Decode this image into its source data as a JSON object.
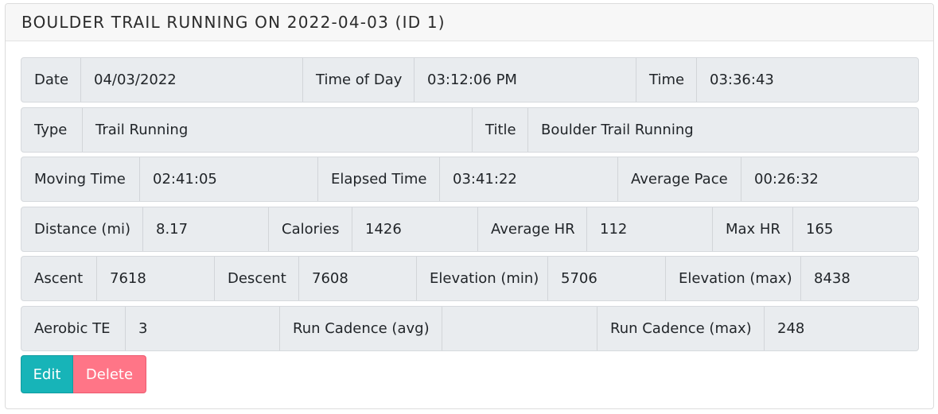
{
  "header": {
    "title": "BOULDER TRAIL RUNNING ON 2022-04-03 (ID 1)"
  },
  "rows": [
    {
      "cells": [
        {
          "label": "Date",
          "value": "04/03/2022"
        },
        {
          "label": "Time of Day",
          "value": "03:12:06 PM"
        },
        {
          "label": "Time",
          "value": "03:36:43"
        }
      ]
    },
    {
      "cells": [
        {
          "label": "Type",
          "value": "Trail Running"
        },
        {
          "label": "Title",
          "value": "Boulder Trail Running"
        }
      ]
    },
    {
      "cells": [
        {
          "label": "Moving Time",
          "value": "02:41:05"
        },
        {
          "label": "Elapsed Time",
          "value": "03:41:22"
        },
        {
          "label": "Average Pace",
          "value": "00:26:32"
        }
      ]
    },
    {
      "cells": [
        {
          "label": "Distance (mi)",
          "value": "8.17"
        },
        {
          "label": "Calories",
          "value": "1426"
        },
        {
          "label": "Average HR",
          "value": "112"
        },
        {
          "label": "Max HR",
          "value": "165"
        }
      ]
    },
    {
      "cells": [
        {
          "label": "Ascent",
          "value": "7618"
        },
        {
          "label": "Descent",
          "value": "7608"
        },
        {
          "label": "Elevation (min)",
          "value": "5706"
        },
        {
          "label": "Elevation (max)",
          "value": "8438"
        }
      ]
    },
    {
      "cells": [
        {
          "label": "Aerobic TE",
          "value": "3"
        },
        {
          "label": "Run Cadence (avg)",
          "value": ""
        },
        {
          "label": "Run Cadence (max)",
          "value": "248"
        }
      ]
    }
  ],
  "actions": {
    "edit_label": "Edit",
    "delete_label": "Delete"
  }
}
